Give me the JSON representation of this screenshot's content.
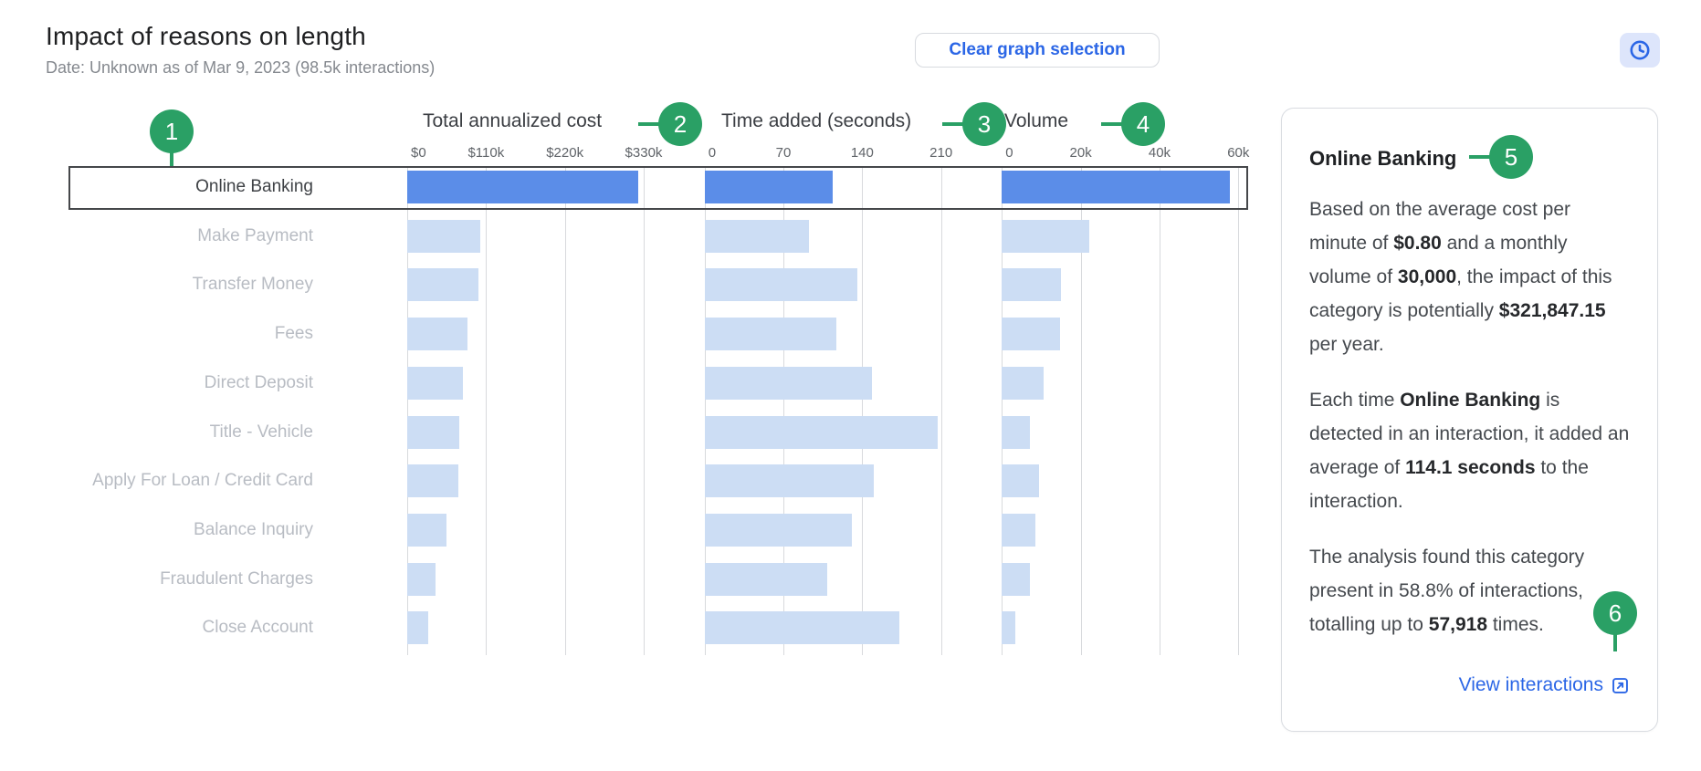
{
  "page": {
    "title": "Impact of reasons on length",
    "subtitle": "Date: Unknown as of Mar 9, 2023 (98.5k interactions)",
    "clear_selection_button": "Clear graph selection",
    "clock_button_icon": "clock-icon"
  },
  "chart_data": {
    "type": "bar",
    "orientation": "horizontal",
    "categories": [
      "Online Banking",
      "Make Payment",
      "Transfer Money",
      "Fees",
      "Direct Deposit",
      "Title - Vehicle",
      "Apply For Loan / Credit Card",
      "Balance Inquiry",
      "Fraudulent Charges",
      "Close Account"
    ],
    "selected_category": "Online Banking",
    "selected_index": 0,
    "columns": [
      {
        "title": "Total annualized cost",
        "badge": "2",
        "ticks": [
          "$0",
          "$110k",
          "$220k",
          "$330k"
        ],
        "tick_values": [
          0,
          110000,
          220000,
          330000
        ],
        "values": [
          321847.15,
          102000,
          99000,
          84000,
          78000,
          72000,
          71000,
          55000,
          39000,
          29000
        ]
      },
      {
        "title": "Time added (seconds)",
        "badge": "3",
        "ticks": [
          "0",
          "70",
          "140",
          "210"
        ],
        "tick_values": [
          0,
          70,
          140,
          210
        ],
        "values": [
          114.1,
          93,
          136,
          117,
          149,
          207,
          150,
          131,
          109,
          173
        ]
      },
      {
        "title": "Volume",
        "badge": "4",
        "ticks": [
          "0",
          "20k",
          "40k",
          "60k"
        ],
        "tick_values": [
          0,
          20000,
          40000,
          60000
        ],
        "values": [
          57918,
          22100,
          14900,
          14700,
          10700,
          7200,
          9500,
          8400,
          7200,
          3500
        ]
      }
    ],
    "grid": true,
    "colors": {
      "selected_bar": "#5b8de8",
      "bar": "#ccddf4",
      "grid_line": "#d8dadd",
      "selection_border": "#45474a",
      "annotation_green": "#2aa065",
      "accent_blue": "#2b66e6"
    }
  },
  "panel": {
    "title": "Online Banking",
    "paragraphs": [
      [
        {
          "text": "Based on the average cost per minute of "
        },
        {
          "text": "$0.80",
          "bold": true
        },
        {
          "text": " and a monthly volume of "
        },
        {
          "text": "30,000",
          "bold": true
        },
        {
          "text": ", the impact of this category is potentially "
        },
        {
          "text": "$321,847.15",
          "bold": true
        },
        {
          "text": " per year."
        }
      ],
      [
        {
          "text": "Each time "
        },
        {
          "text": "Online Banking",
          "bold": true
        },
        {
          "text": " is detected in an interaction, it added an average of "
        },
        {
          "text": "114.1 seconds",
          "bold": true
        },
        {
          "text": " to the interaction."
        }
      ],
      [
        {
          "text": "The analysis found this category present in 58.8% of interactions, totalling up to "
        },
        {
          "text": "57,918",
          "bold": true
        },
        {
          "text": " times."
        }
      ]
    ],
    "link_label": "View interactions",
    "link_icon": "view-interactions-icon"
  },
  "annotations": {
    "badges": [
      "1",
      "2",
      "3",
      "4",
      "5",
      "6"
    ]
  }
}
